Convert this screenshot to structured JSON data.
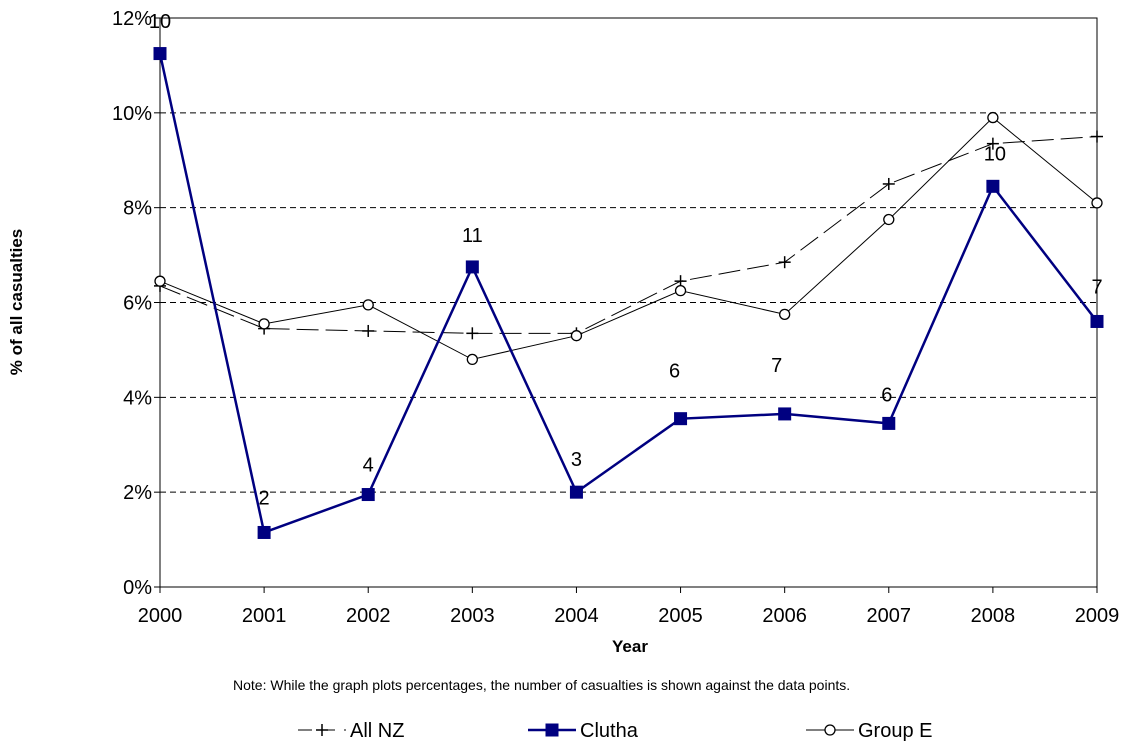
{
  "chart_data": {
    "type": "line",
    "xlabel": "Year",
    "ylabel": "% of all casualties",
    "x": [
      "2000",
      "2001",
      "2002",
      "2003",
      "2004",
      "2005",
      "2006",
      "2007",
      "2008",
      "2009"
    ],
    "ylim": [
      0,
      12
    ],
    "yticks": [
      "0%",
      "2%",
      "4%",
      "6%",
      "8%",
      "10%",
      "12%"
    ],
    "grid": "horizontal dashed",
    "legend_position": "bottom",
    "note": "Note: While the graph plots percentages, the number of casualties is shown against the data points.",
    "series": [
      {
        "name": "All NZ",
        "values": [
          6.35,
          5.45,
          5.4,
          5.35,
          5.35,
          6.45,
          6.85,
          8.5,
          9.35,
          9.5
        ],
        "color": "#000000",
        "marker": "plus",
        "line_style": "long-dash"
      },
      {
        "name": "Clutha",
        "values": [
          11.25,
          1.15,
          1.95,
          6.75,
          2.0,
          3.55,
          3.65,
          3.45,
          8.45,
          5.6
        ],
        "counts": [
          "10",
          "2",
          "4",
          "11",
          "3",
          "6",
          "7",
          "6",
          "10",
          "7"
        ],
        "color": "#000080",
        "marker": "square",
        "line_style": "solid-thick"
      },
      {
        "name": "Group E",
        "values": [
          6.45,
          5.55,
          5.95,
          4.8,
          5.3,
          6.25,
          5.75,
          7.75,
          9.9,
          8.1
        ],
        "color": "#000000",
        "marker": "circle",
        "line_style": "solid-thin"
      }
    ]
  }
}
